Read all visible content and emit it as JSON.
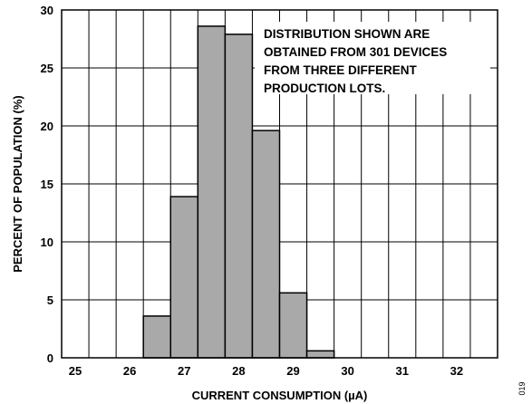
{
  "chart_data": {
    "type": "bar",
    "bin_width": 0.5,
    "bins": [
      {
        "x_start": 26.25,
        "value": 3.6
      },
      {
        "x_start": 26.75,
        "value": 13.9
      },
      {
        "x_start": 27.25,
        "value": 28.6
      },
      {
        "x_start": 27.75,
        "value": 27.9
      },
      {
        "x_start": 28.25,
        "value": 19.6
      },
      {
        "x_start": 28.75,
        "value": 5.6
      },
      {
        "x_start": 29.25,
        "value": 0.6
      }
    ],
    "xlim": [
      24.75,
      32.75
    ],
    "ylim": [
      0,
      30
    ],
    "x_ticks": [
      "25",
      "26",
      "27",
      "28",
      "29",
      "30",
      "31",
      "32"
    ],
    "y_ticks": [
      "0",
      "5",
      "10",
      "15",
      "20",
      "25",
      "30"
    ],
    "xlabel": "CURRENT CONSUMPTION (µA)",
    "ylabel": "PERCENT OF POPULATION (%)",
    "annotation": [
      "DISTRIBUTION SHOWN ARE",
      "OBTAINED FROM 301 DEVICES",
      "FROM THREE DIFFERENT",
      "PRODUCTION LOTS."
    ],
    "figure_id": "019",
    "grid": true,
    "colors": {
      "bar_fill": "#a9a9a9",
      "grid": "#000000"
    }
  }
}
